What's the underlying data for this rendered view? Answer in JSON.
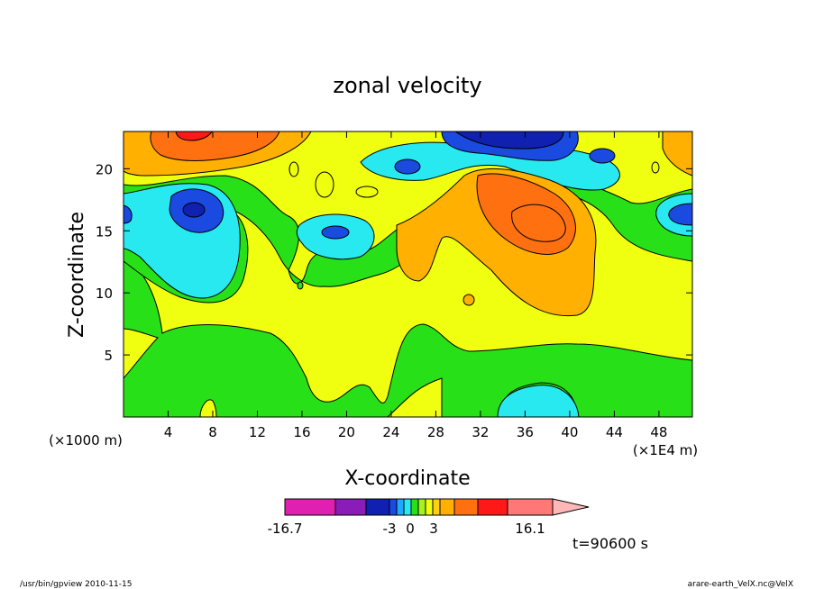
{
  "chart_data": {
    "type": "heatmap",
    "title": "zonal velocity",
    "xlabel": "X-coordinate",
    "ylabel": "Z-coordinate",
    "x_unit": "(×1E4 m)",
    "y_unit": "(×1000 m)",
    "xlim": [
      0,
      51
    ],
    "ylim": [
      0,
      23
    ],
    "x_ticks": [
      "4",
      "8",
      "12",
      "16",
      "20",
      "24",
      "28",
      "32",
      "36",
      "40",
      "44",
      "48"
    ],
    "y_ticks": [
      "5",
      "10",
      "15",
      "20"
    ],
    "colorbar": {
      "labels": [
        "-16.7",
        "-3",
        "0",
        "3",
        "16.1"
      ],
      "colors": [
        "#e020b0",
        "#8a1cb8",
        "#1020b0",
        "#1a4ae0",
        "#20a8ff",
        "#28e8f0",
        "#28e018",
        "#a8f020",
        "#f0ff10",
        "#ffd010",
        "#ffb000",
        "#ff7010",
        "#ff1818",
        "#ff7878",
        "#ffb8b8"
      ]
    },
    "regions": [
      {
        "name": "yellow-base",
        "color": "#f0ff10"
      },
      {
        "name": "green-lower-band",
        "color": "#28e018"
      },
      {
        "name": "cyan-bottom-center",
        "color": "#28e8f0"
      },
      {
        "name": "cyan-left-middle",
        "color": "#28e8f0"
      },
      {
        "name": "blue-core-x6-z16",
        "color": "#1a4ae0"
      },
      {
        "name": "cyan-core-x19-z15",
        "color": "#28e8f0"
      },
      {
        "name": "orange-top-left",
        "color": "#ffb000"
      },
      {
        "name": "red-top-left",
        "color": "#ff7010"
      },
      {
        "name": "blue-top-center",
        "color": "#1a4ae0"
      },
      {
        "name": "orange-center-right",
        "color": "#ffb000"
      },
      {
        "name": "dark-orange-core-x37-z16",
        "color": "#ff7010"
      }
    ],
    "grid": false
  },
  "time_label": "t=90600 s",
  "footer": {
    "left": "/usr/bin/gpview   2010-11-15",
    "right": "arare-earth_VelX.nc@VelX"
  }
}
